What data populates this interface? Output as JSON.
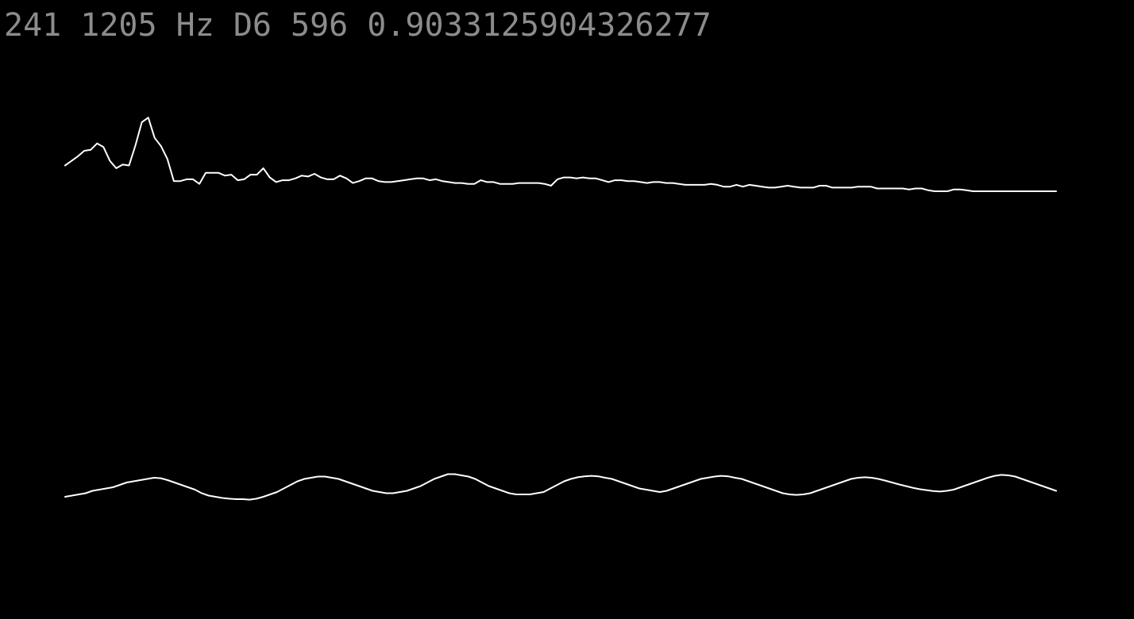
{
  "readout": {
    "index": "241",
    "frequency": "1205 Hz",
    "note": "D6",
    "value": "596",
    "ratio": "0.9033125904326277"
  },
  "colors": {
    "background": "#000000",
    "readout_text": "#8c8c8c",
    "trace": "#ffffff"
  },
  "traces": {
    "spectrum": [
      0.72,
      0.67,
      0.62,
      0.56,
      0.55,
      0.48,
      0.52,
      0.67,
      0.75,
      0.71,
      0.72,
      0.5,
      0.25,
      0.2,
      0.42,
      0.51,
      0.65,
      0.89,
      0.89,
      0.87,
      0.87,
      0.92,
      0.8,
      0.8,
      0.8,
      0.83,
      0.82,
      0.88,
      0.87,
      0.82,
      0.82,
      0.75,
      0.85,
      0.9,
      0.88,
      0.88,
      0.86,
      0.83,
      0.84,
      0.81,
      0.85,
      0.87,
      0.87,
      0.83,
      0.86,
      0.91,
      0.89,
      0.86,
      0.86,
      0.89,
      0.9,
      0.9,
      0.89,
      0.88,
      0.87,
      0.86,
      0.86,
      0.88,
      0.87,
      0.89,
      0.9,
      0.91,
      0.91,
      0.92,
      0.92,
      0.88,
      0.9,
      0.9,
      0.92,
      0.92,
      0.92,
      0.91,
      0.91,
      0.91,
      0.91,
      0.92,
      0.94,
      0.87,
      0.85,
      0.85,
      0.86,
      0.85,
      0.86,
      0.86,
      0.88,
      0.9,
      0.88,
      0.88,
      0.89,
      0.89,
      0.9,
      0.91,
      0.9,
      0.9,
      0.91,
      0.91,
      0.92,
      0.93,
      0.93,
      0.93,
      0.93,
      0.92,
      0.93,
      0.95,
      0.95,
      0.93,
      0.95,
      0.93,
      0.94,
      0.95,
      0.96,
      0.96,
      0.95,
      0.94,
      0.95,
      0.96,
      0.96,
      0.96,
      0.94,
      0.94,
      0.96,
      0.96,
      0.96,
      0.96,
      0.95,
      0.95,
      0.95,
      0.97,
      0.97,
      0.97,
      0.97,
      0.97,
      0.98,
      0.97,
      0.97,
      0.99,
      1.0,
      1.0,
      1.0,
      0.98,
      0.98,
      0.99,
      1.0,
      1.0,
      1.0,
      1.0,
      1.0,
      1.0,
      1.0,
      1.0,
      1.0,
      1.0,
      1.0,
      1.0,
      1.0,
      1.0
    ],
    "waveform": [
      -0.2,
      -0.15,
      -0.1,
      -0.05,
      0.05,
      0.1,
      0.15,
      0.2,
      0.3,
      0.4,
      0.45,
      0.5,
      0.55,
      0.6,
      0.58,
      0.5,
      0.4,
      0.3,
      0.2,
      0.1,
      -0.05,
      -0.15,
      -0.2,
      -0.25,
      -0.28,
      -0.3,
      -0.3,
      -0.32,
      -0.28,
      -0.2,
      -0.1,
      0.0,
      0.15,
      0.3,
      0.45,
      0.55,
      0.6,
      0.65,
      0.65,
      0.6,
      0.55,
      0.45,
      0.35,
      0.25,
      0.15,
      0.05,
      0.0,
      -0.05,
      -0.05,
      0.0,
      0.05,
      0.15,
      0.25,
      0.4,
      0.55,
      0.65,
      0.75,
      0.75,
      0.7,
      0.65,
      0.55,
      0.4,
      0.25,
      0.15,
      0.05,
      -0.05,
      -0.1,
      -0.1,
      -0.1,
      -0.05,
      0.0,
      0.15,
      0.3,
      0.45,
      0.55,
      0.62,
      0.66,
      0.68,
      0.66,
      0.6,
      0.55,
      0.45,
      0.35,
      0.25,
      0.15,
      0.1,
      0.05,
      0.0,
      0.05,
      0.15,
      0.25,
      0.35,
      0.45,
      0.55,
      0.6,
      0.65,
      0.68,
      0.66,
      0.6,
      0.55,
      0.45,
      0.35,
      0.25,
      0.15,
      0.05,
      -0.05,
      -0.1,
      -0.12,
      -0.1,
      -0.05,
      0.05,
      0.15,
      0.25,
      0.35,
      0.45,
      0.55,
      0.6,
      0.62,
      0.6,
      0.55,
      0.48,
      0.4,
      0.32,
      0.25,
      0.18,
      0.12,
      0.08,
      0.04,
      0.02,
      0.05,
      0.1,
      0.2,
      0.3,
      0.4,
      0.5,
      0.6,
      0.68,
      0.72,
      0.7,
      0.65,
      0.55,
      0.45,
      0.35,
      0.25,
      0.15,
      0.05
    ]
  }
}
